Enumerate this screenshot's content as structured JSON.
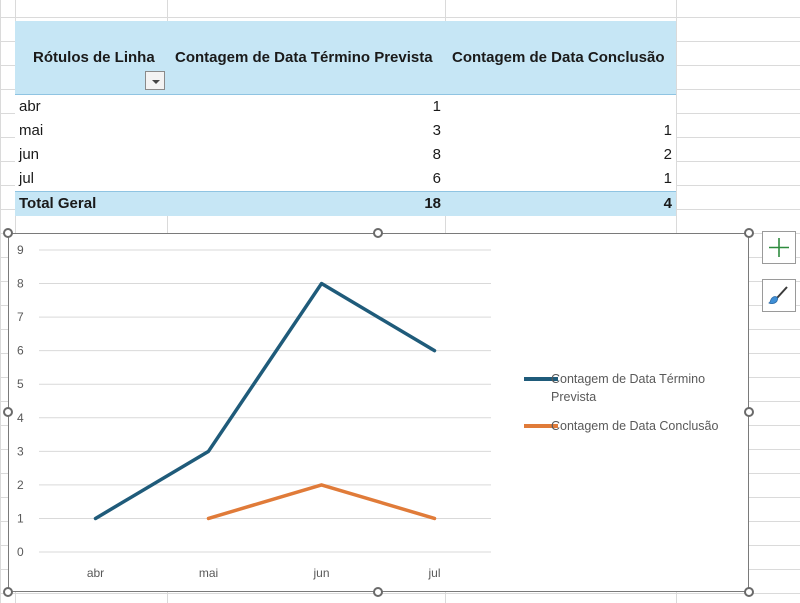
{
  "pivot": {
    "headers": [
      "Rótulos de Linha",
      "Contagem de Data Término Prevista",
      "Contagem de Data Conclusão"
    ],
    "rows": [
      {
        "label": "abr",
        "prevista": "1",
        "conclusao": ""
      },
      {
        "label": "mai",
        "prevista": "3",
        "conclusao": "1"
      },
      {
        "label": "jun",
        "prevista": "8",
        "conclusao": "2"
      },
      {
        "label": "jul",
        "prevista": "6",
        "conclusao": "1"
      }
    ],
    "total": {
      "label": "Total Geral",
      "prevista": "18",
      "conclusao": "4"
    }
  },
  "chart_data": {
    "type": "line",
    "categories": [
      "abr",
      "mai",
      "jun",
      "jul"
    ],
    "series": [
      {
        "name": "Contagem de Data Término Prevista",
        "values": [
          1,
          3,
          8,
          6
        ],
        "color": "#1f5b7a"
      },
      {
        "name": "Contagem de Data Conclusão",
        "values": [
          null,
          1,
          2,
          1
        ],
        "color": "#e07b39"
      }
    ],
    "ylim": [
      0,
      9
    ],
    "yticks": [
      "0",
      "1",
      "2",
      "3",
      "4",
      "5",
      "6",
      "7",
      "8",
      "9"
    ],
    "grid": true,
    "legend": "right",
    "title": "",
    "xlabel": "",
    "ylabel": ""
  },
  "icons": {
    "chart_elements": "plus-icon",
    "chart_styles": "brush-icon"
  },
  "colors": {
    "pivot_header": "#c6e6f5",
    "plus_icon": "#2e8b3e"
  }
}
